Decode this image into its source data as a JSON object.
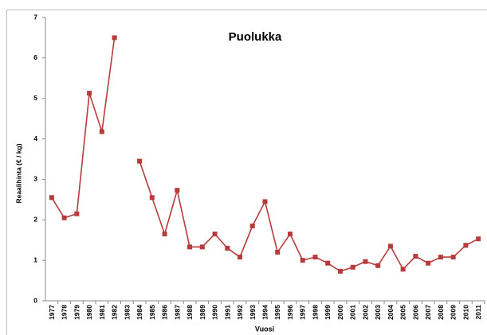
{
  "chart_data": {
    "type": "line",
    "title": "Puolukka",
    "y_label": "Reaalihinta (€ / kg)",
    "x_label": "Vuosi",
    "categories": [
      "1977",
      "1978",
      "1979",
      "1980",
      "1981",
      "1982",
      "1983",
      "1984",
      "1985",
      "1986",
      "1987",
      "1988",
      "1989",
      "1990",
      "1991",
      "1992",
      "1993",
      "1994",
      "1995",
      "1996",
      "1997",
      "1998",
      "1999",
      "2000",
      "2001",
      "2002",
      "2003",
      "2004",
      "2005",
      "2006",
      "2007",
      "2008",
      "2009",
      "2010",
      "2011"
    ],
    "series": [
      {
        "name": "Puolukka",
        "color": "#b83b3b",
        "values": [
          2.55,
          2.05,
          2.15,
          5.13,
          4.18,
          6.5,
          null,
          3.45,
          2.55,
          1.65,
          2.73,
          1.33,
          1.33,
          1.65,
          1.3,
          1.08,
          1.85,
          2.45,
          1.2,
          1.65,
          1.0,
          1.08,
          0.93,
          0.73,
          0.83,
          0.97,
          0.87,
          1.35,
          0.78,
          1.1,
          0.93,
          1.08,
          1.08,
          1.37,
          1.53
        ]
      }
    ],
    "ylim": [
      0,
      7
    ],
    "yticks": [
      0,
      1,
      2,
      3,
      4,
      5,
      6,
      7
    ],
    "grid": false
  }
}
